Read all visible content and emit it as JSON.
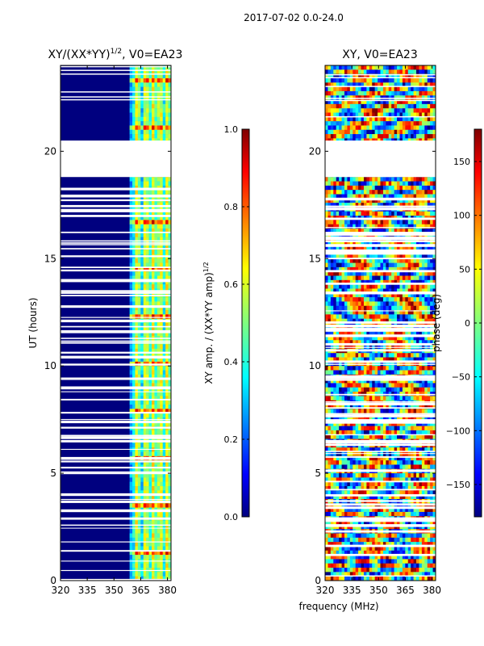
{
  "figure_title": "2017-07-02 0.0-24.0",
  "colors": {
    "jet_stops": [
      "#00007f",
      "#0000ff",
      "#007fff",
      "#00ffff",
      "#7fff7f",
      "#ffff00",
      "#ff7f00",
      "#ff0000",
      "#7f0000"
    ],
    "gap": "#ffffff"
  },
  "chart_data": [
    {
      "type": "heatmap",
      "title": "XY/(XX*YY)^{1/2}, V0=EA23",
      "title_main": "XY/(XX*YY)",
      "title_exp": "1/2",
      "title_suffix": ", V0=EA23",
      "xlabel": "",
      "ylabel": "UT (hours)",
      "xlim": [
        320,
        382
      ],
      "ylim": [
        0,
        24
      ],
      "xticks": [
        320,
        335,
        350,
        365,
        380
      ],
      "xtick_labels": [
        "320",
        "335",
        "350",
        "365",
        "380"
      ],
      "yticks": [
        0,
        5,
        10,
        15,
        20
      ],
      "ytick_labels": [
        "0",
        "5",
        "10",
        "15",
        "20"
      ],
      "gap_hours": [
        20.5,
        18.8
      ],
      "bright_columns_mhz": [
        363,
        368,
        372,
        376,
        380
      ],
      "colorbar": {
        "label": "XY amp. / (XX*YY amp)^{1/2}",
        "label_main": "XY amp. / (XX*YY amp)",
        "label_exp": "1/2",
        "range": [
          0.0,
          1.0
        ],
        "ticks": [
          0.0,
          0.2,
          0.4,
          0.6,
          0.8,
          1.0
        ],
        "tick_labels": [
          "0.0",
          "0.2",
          "0.4",
          "0.6",
          "0.8",
          "1.0"
        ]
      }
    },
    {
      "type": "heatmap",
      "title": "XY, V0=EA23",
      "xlabel": "frequency (MHz)",
      "ylabel": "",
      "xlim": [
        320,
        382
      ],
      "ylim": [
        0,
        24
      ],
      "xticks": [
        320,
        335,
        350,
        365,
        380
      ],
      "xtick_labels": [
        "320",
        "335",
        "350",
        "365",
        "380"
      ],
      "yticks": [
        0,
        5,
        10,
        15,
        20
      ],
      "ytick_labels": [
        "0",
        "5",
        "10",
        "15",
        "20"
      ],
      "gap_hours": [
        20.5,
        18.8
      ],
      "colorbar": {
        "label": "phase (deg)",
        "range": [
          -180,
          180
        ],
        "ticks": [
          -150,
          -100,
          -50,
          0,
          50,
          100,
          150
        ],
        "tick_labels": [
          "−150",
          "−100",
          "−50",
          "0",
          "50",
          "100",
          "150"
        ]
      }
    }
  ]
}
